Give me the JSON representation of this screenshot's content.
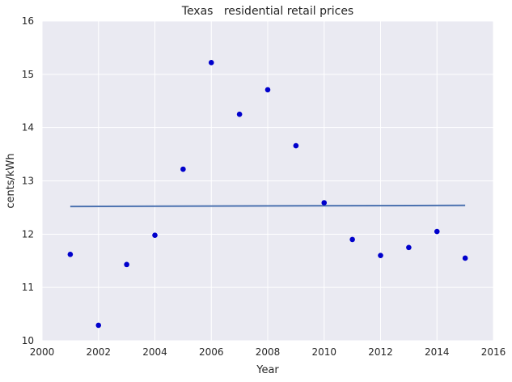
{
  "chart_data": {
    "type": "scatter",
    "title": "Texas   residential retail prices",
    "xlabel": "Year",
    "ylabel": "cents/kWh",
    "xlim": [
      2000,
      2016
    ],
    "ylim": [
      10,
      16
    ],
    "xticks": [
      2000,
      2002,
      2004,
      2006,
      2008,
      2010,
      2012,
      2014,
      2016
    ],
    "yticks": [
      10,
      11,
      12,
      13,
      14,
      15,
      16
    ],
    "grid": true,
    "legend": "none",
    "colors": {
      "background": "#eaeaf2",
      "grid": "#ffffff",
      "points": "#0000cc",
      "fit_line": "#4c72b0"
    },
    "series": [
      {
        "type": "scatter",
        "x": [
          2001,
          2002,
          2003,
          2004,
          2005,
          2006,
          2007,
          2008,
          2009,
          2010,
          2011,
          2012,
          2013,
          2014,
          2015
        ],
        "y": [
          11.62,
          10.29,
          11.43,
          11.98,
          13.22,
          15.22,
          14.25,
          14.71,
          13.66,
          12.59,
          11.9,
          11.6,
          11.75,
          12.05,
          11.55
        ]
      },
      {
        "type": "line",
        "x": [
          2001,
          2015
        ],
        "y": [
          12.52,
          12.54
        ]
      }
    ]
  }
}
